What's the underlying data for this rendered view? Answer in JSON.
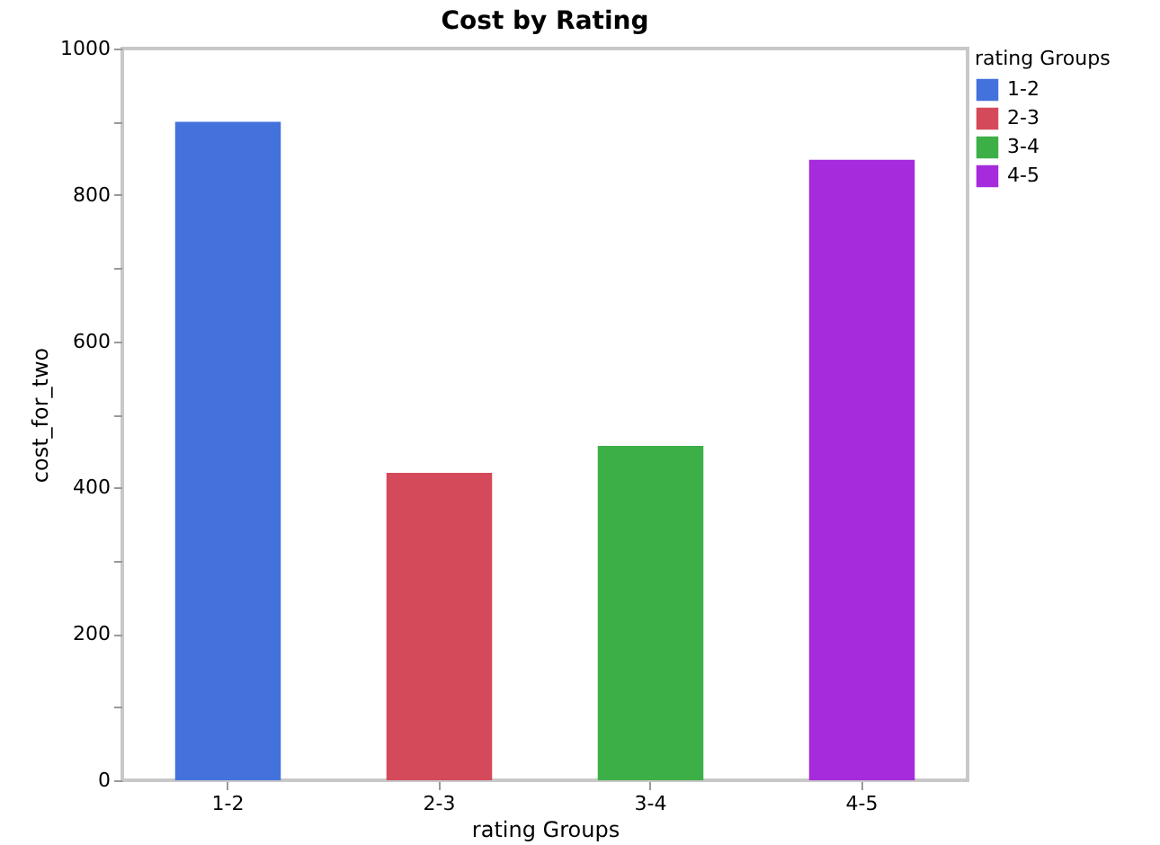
{
  "chart_data": {
    "type": "bar",
    "title": "Cost by Rating",
    "xlabel": "rating Groups",
    "ylabel": "cost_for_two",
    "legend_title": "rating Groups",
    "categories": [
      "1-2",
      "2-3",
      "3-4",
      "4-5"
    ],
    "series": [
      {
        "name": "1-2",
        "color": "#4472dd",
        "values": [
          900,
          null,
          null,
          null
        ]
      },
      {
        "name": "2-3",
        "color": "#d44a5a",
        "values": [
          null,
          420,
          null,
          null
        ]
      },
      {
        "name": "3-4",
        "color": "#3daf47",
        "values": [
          null,
          null,
          457,
          null
        ]
      },
      {
        "name": "4-5",
        "color": "#a52bdc",
        "values": [
          null,
          null,
          null,
          848
        ]
      }
    ],
    "ylim": [
      0,
      1000
    ],
    "yticks": [
      0,
      {
        "value": 100,
        "label": null
      },
      200,
      {
        "value": 300,
        "label": null
      },
      400,
      {
        "value": 500,
        "label": null
      },
      600,
      {
        "value": 700,
        "label": null
      },
      800,
      {
        "value": 900,
        "label": null
      },
      1000
    ],
    "grid": false,
    "legend": "top right"
  }
}
